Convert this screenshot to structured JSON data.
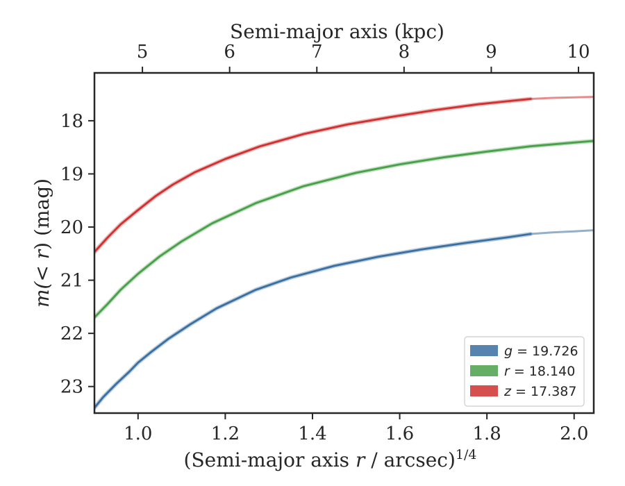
{
  "chart_data": {
    "type": "line",
    "title": "",
    "xlabel": "(Semi-major axis r / arcsec)^{1/4}",
    "xlabel_parts": {
      "prefix": "(Semi-major axis ",
      "var": "r",
      "suffix": " / arcsec)",
      "exponent": "1/4"
    },
    "ylabel": "m(<r) (mag)",
    "ylabel_parts": {
      "func": "m(",
      "var_lt": "< r",
      "close": ")",
      "unit": " (mag)"
    },
    "top_xlabel": "Semi-major axis (kpc)",
    "xlim": [
      0.9,
      2.045
    ],
    "ylim": [
      23.5,
      17.1
    ],
    "y_inverted": true,
    "xticks": [
      1.0,
      1.2,
      1.4,
      1.6,
      1.8,
      2.0
    ],
    "xtick_labels": [
      "1.0",
      "1.2",
      "1.4",
      "1.6",
      "1.8",
      "2.0"
    ],
    "yticks": [
      18,
      19,
      20,
      21,
      22,
      23
    ],
    "ytick_labels": [
      "18",
      "19",
      "20",
      "21",
      "22",
      "23"
    ],
    "top_xticks": [
      5,
      6,
      7,
      8,
      9,
      10
    ],
    "top_xtick_labels": [
      "5",
      "6",
      "7",
      "8",
      "9",
      "10"
    ],
    "top_xtick_positions": [
      1.01,
      1.21,
      1.41,
      1.61,
      1.81,
      2.01
    ],
    "legend_placement": "lower-right",
    "grid": false,
    "series": [
      {
        "name": "g = 19.726",
        "legend_var": "g",
        "legend_value": "= 19.726",
        "color": "#3a6fa0",
        "x": [
          0.9,
          0.92,
          0.95,
          0.98,
          1.0,
          1.03,
          1.07,
          1.12,
          1.18,
          1.27,
          1.35,
          1.45,
          1.55,
          1.65,
          1.75,
          1.85,
          1.9
        ],
        "y": [
          23.4,
          23.2,
          22.95,
          22.72,
          22.55,
          22.35,
          22.1,
          21.83,
          21.53,
          21.18,
          20.95,
          20.73,
          20.56,
          20.42,
          20.3,
          20.19,
          20.13
        ],
        "extension": {
          "x": [
            1.9,
            1.95,
            2.0,
            2.045
          ],
          "y": [
            20.13,
            20.1,
            20.08,
            20.06
          ]
        }
      },
      {
        "name": "r = 18.140",
        "legend_var": "r",
        "legend_value": "= 18.140",
        "color": "#4aa04a",
        "x": [
          0.9,
          0.93,
          0.96,
          1.0,
          1.05,
          1.1,
          1.17,
          1.27,
          1.38,
          1.5,
          1.6,
          1.7,
          1.8,
          1.9,
          2.0,
          2.045
        ],
        "y": [
          21.7,
          21.45,
          21.18,
          20.88,
          20.55,
          20.27,
          19.93,
          19.55,
          19.23,
          18.98,
          18.82,
          18.69,
          18.58,
          18.48,
          18.41,
          18.38
        ]
      },
      {
        "name": "z = 17.387",
        "legend_var": "z",
        "legend_value": "= 17.387",
        "color": "#cf3030",
        "x": [
          0.9,
          0.93,
          0.96,
          1.0,
          1.04,
          1.08,
          1.13,
          1.2,
          1.28,
          1.38,
          1.48,
          1.58,
          1.68,
          1.78,
          1.85,
          1.9
        ],
        "y": [
          20.47,
          20.2,
          19.95,
          19.68,
          19.42,
          19.2,
          18.97,
          18.72,
          18.48,
          18.25,
          18.07,
          17.93,
          17.8,
          17.69,
          17.63,
          17.59
        ],
        "extension": {
          "x": [
            1.9,
            1.95,
            2.0,
            2.045
          ],
          "y": [
            17.59,
            17.57,
            17.56,
            17.55
          ]
        }
      }
    ]
  }
}
